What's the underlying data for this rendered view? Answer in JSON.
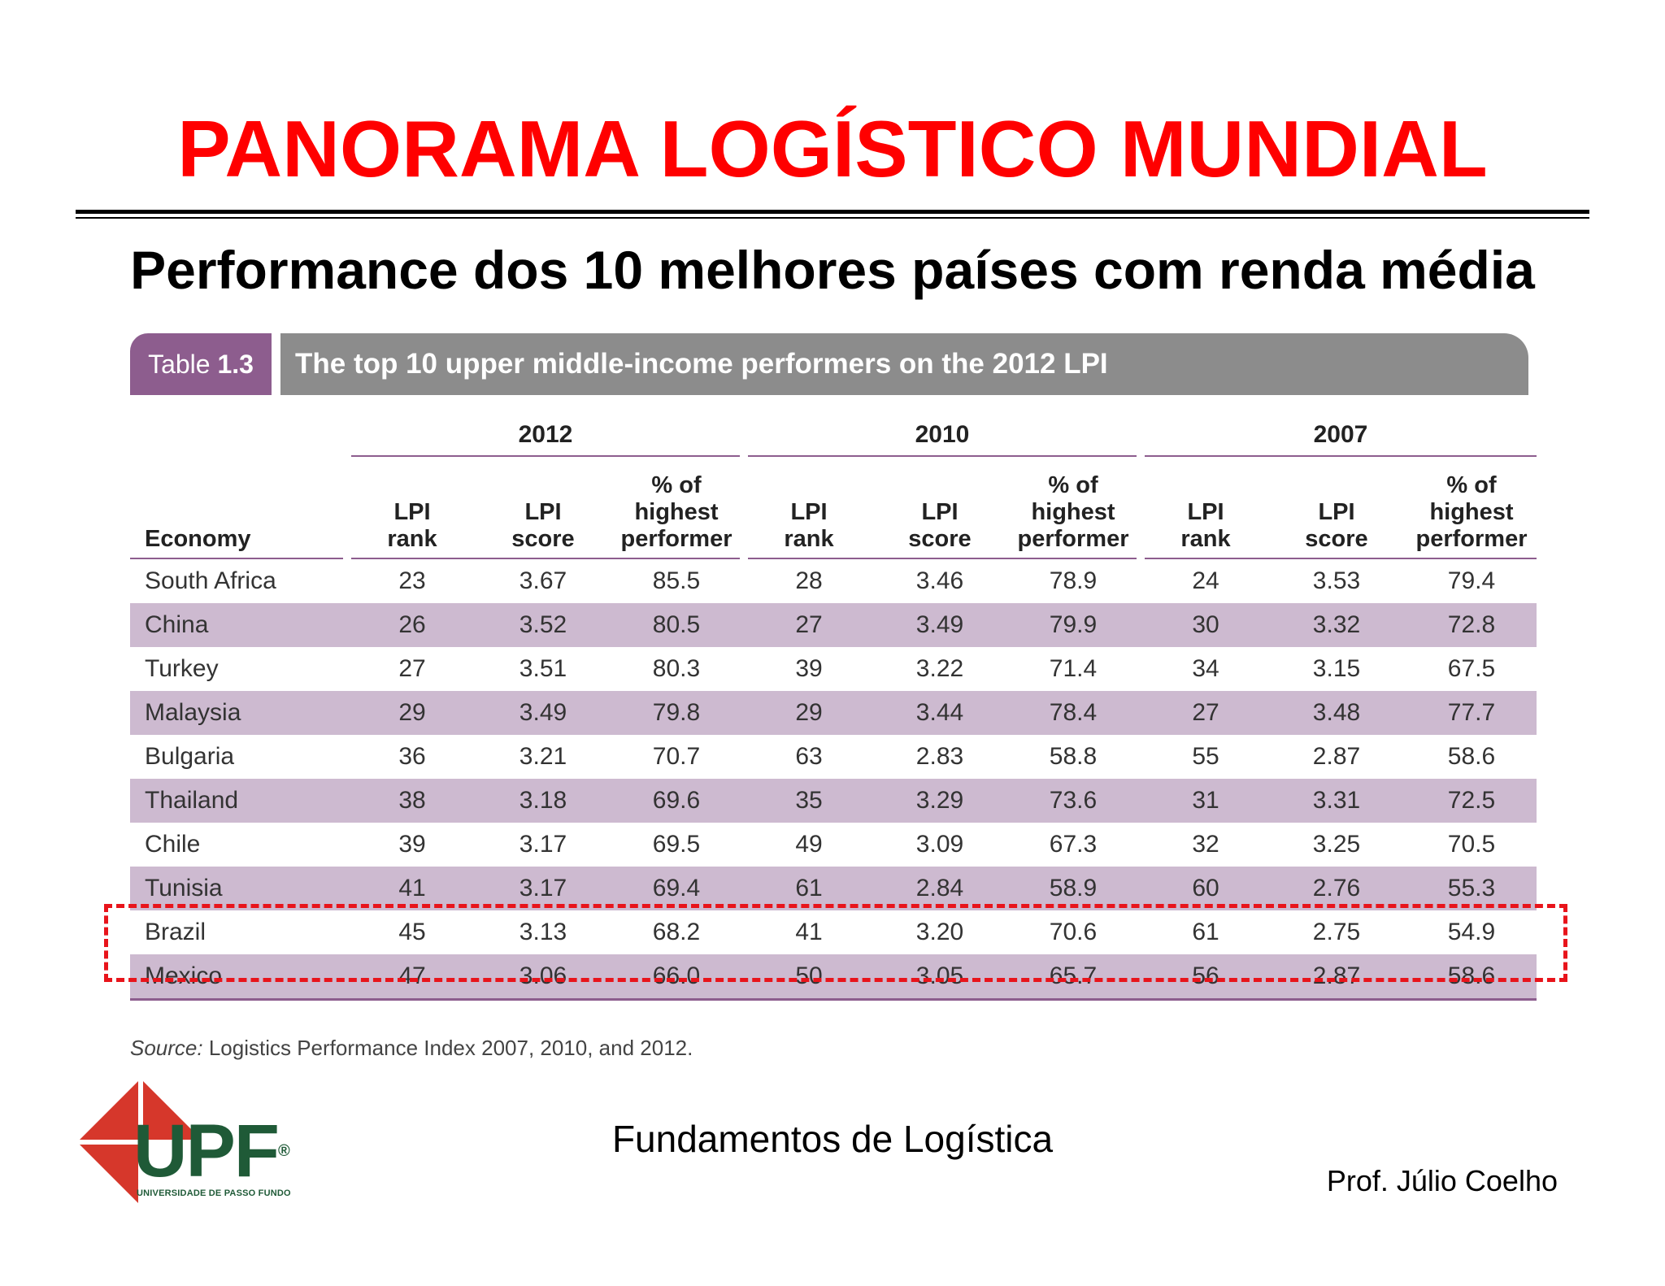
{
  "slide": {
    "title": "PANORAMA LOGÍSTICO MUNDIAL",
    "subtitle": "Performance dos 10 melhores países com renda média"
  },
  "table": {
    "tag_prefix": "Table",
    "tag_number": "1.3",
    "caption": "The top 10 upper middle-income performers on the 2012 LPI",
    "years": [
      "2012",
      "2010",
      "2007"
    ],
    "economy_header": "Economy",
    "col_rank": [
      "LPI",
      "rank"
    ],
    "col_score": [
      "LPI",
      "score"
    ],
    "col_pct": [
      "% of",
      "highest",
      "performer"
    ],
    "rows": [
      [
        "South Africa",
        "23",
        "3.67",
        "85.5",
        "28",
        "3.46",
        "78.9",
        "24",
        "3.53",
        "79.4"
      ],
      [
        "China",
        "26",
        "3.52",
        "80.5",
        "27",
        "3.49",
        "79.9",
        "30",
        "3.32",
        "72.8"
      ],
      [
        "Turkey",
        "27",
        "3.51",
        "80.3",
        "39",
        "3.22",
        "71.4",
        "34",
        "3.15",
        "67.5"
      ],
      [
        "Malaysia",
        "29",
        "3.49",
        "79.8",
        "29",
        "3.44",
        "78.4",
        "27",
        "3.48",
        "77.7"
      ],
      [
        "Bulgaria",
        "36",
        "3.21",
        "70.7",
        "63",
        "2.83",
        "58.8",
        "55",
        "2.87",
        "58.6"
      ],
      [
        "Thailand",
        "38",
        "3.18",
        "69.6",
        "35",
        "3.29",
        "73.6",
        "31",
        "3.31",
        "72.5"
      ],
      [
        "Chile",
        "39",
        "3.17",
        "69.5",
        "49",
        "3.09",
        "67.3",
        "32",
        "3.25",
        "70.5"
      ],
      [
        "Tunisia",
        "41",
        "3.17",
        "69.4",
        "61",
        "2.84",
        "58.9",
        "60",
        "2.76",
        "55.3"
      ],
      [
        "Brazil",
        "45",
        "3.13",
        "68.2",
        "41",
        "3.20",
        "70.6",
        "61",
        "2.75",
        "54.9"
      ],
      [
        "Mexico",
        "47",
        "3.06",
        "66.0",
        "50",
        "3.05",
        "65.7",
        "56",
        "2.87",
        "58.6"
      ]
    ],
    "source_label": "Source:",
    "source_text": " Logistics Performance Index 2007, 2010, and 2012.",
    "highlighted_country": "Brazil"
  },
  "footer": {
    "course": "Fundamentos de Logística",
    "professor": "Prof. Júlio Coelho",
    "logo_word": "UPF",
    "logo_caption": "UNIVERSIDADE DE PASSO FUNDO",
    "logo_mark": "®"
  },
  "colors": {
    "title": "#ff0000",
    "tag": "#8d5d8e",
    "caption_bar": "#8c8c8c",
    "row_shade": "#cdbad0",
    "highlight": "#e8141b",
    "logo_red": "#d6372b",
    "logo_green": "#1f5a37"
  }
}
